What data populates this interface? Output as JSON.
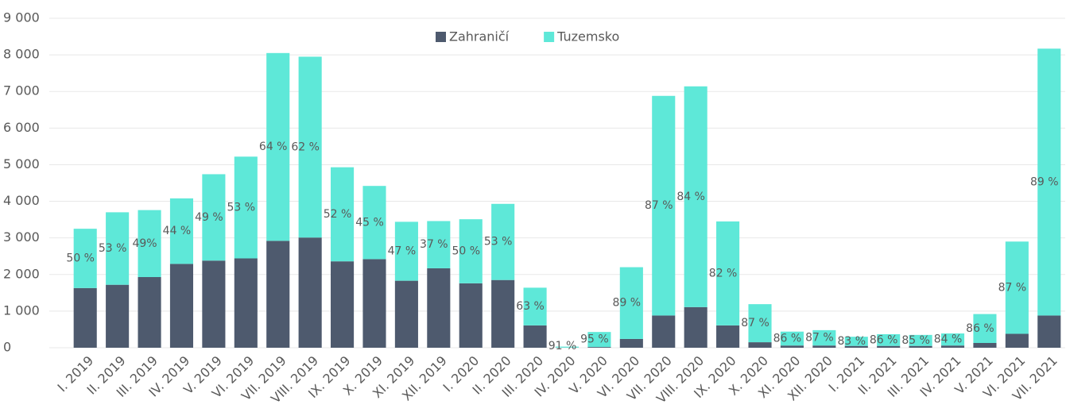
{
  "chart_data": {
    "type": "stacked_bar",
    "categories": [
      "I. 2019",
      "II. 2019",
      "III. 2019",
      "IV. 2019",
      "V. 2019",
      "VI. 2019",
      "VII. 2019",
      "VIII. 2019",
      "IX. 2019",
      "X. 2019",
      "XI. 2019",
      "XII. 2019",
      "I. 2020",
      "II. 2020",
      "III. 2020",
      "IV. 2020",
      "V. 2020",
      "VI. 2020",
      "VII. 2020",
      "VIII. 2020",
      "IX. 2020",
      "X. 2020",
      "XI. 2020",
      "XII. 2020",
      "I. 2021",
      "II. 2021",
      "III. 2021",
      "IV. 2021",
      "V. 2021",
      "VI. 2021",
      "VII. 2021"
    ],
    "series": [
      {
        "name": "Zahraničí",
        "color": "#4e5a6e",
        "values": [
          1630,
          1720,
          1930,
          2290,
          2380,
          2440,
          2920,
          3010,
          2360,
          2420,
          1830,
          2170,
          1760,
          1850,
          610,
          3,
          20,
          240,
          880,
          1110,
          610,
          150,
          60,
          60,
          50,
          50,
          50,
          60,
          130,
          380,
          880
        ]
      },
      {
        "name": "Tuzemsko",
        "color": "#5ee8d8",
        "values": [
          1620,
          1980,
          1830,
          1790,
          2360,
          2780,
          5130,
          4940,
          2570,
          2000,
          1610,
          1290,
          1750,
          2080,
          1030,
          27,
          410,
          1960,
          6000,
          6030,
          2840,
          1040,
          380,
          420,
          250,
          320,
          300,
          330,
          790,
          2520,
          7290
        ],
        "labels": [
          "50 %",
          "53 %",
          "49%",
          "44 %",
          "49 %",
          "53 %",
          "64 %",
          "62 %",
          "52 %",
          "45 %",
          "47 %",
          "37 %",
          "50 %",
          "53 %",
          "63 %",
          "91 %",
          "95 %",
          "89 %",
          "87 %",
          "84 %",
          "82 %",
          "87 %",
          "86 %",
          "87 %",
          "83 %",
          "86 %",
          "85 %",
          "84 %",
          "86 %",
          "87 %",
          "89 %"
        ]
      }
    ],
    "ylim": [
      0,
      9000
    ],
    "yticks": [
      0,
      {
        "value": 1000,
        "label": "1 000"
      },
      {
        "value": 2000,
        "label": "2 000"
      },
      {
        "value": 3000,
        "label": "3 000"
      },
      {
        "value": 4000,
        "label": "4 000"
      },
      {
        "value": 5000,
        "label": "5 000"
      },
      {
        "value": 6000,
        "label": "6 000"
      },
      {
        "value": 7000,
        "label": "7 000"
      },
      {
        "value": 8000,
        "label": "8 000"
      },
      {
        "value": 9000,
        "label": "9 000"
      }
    ],
    "grid": true,
    "legend": "top"
  }
}
